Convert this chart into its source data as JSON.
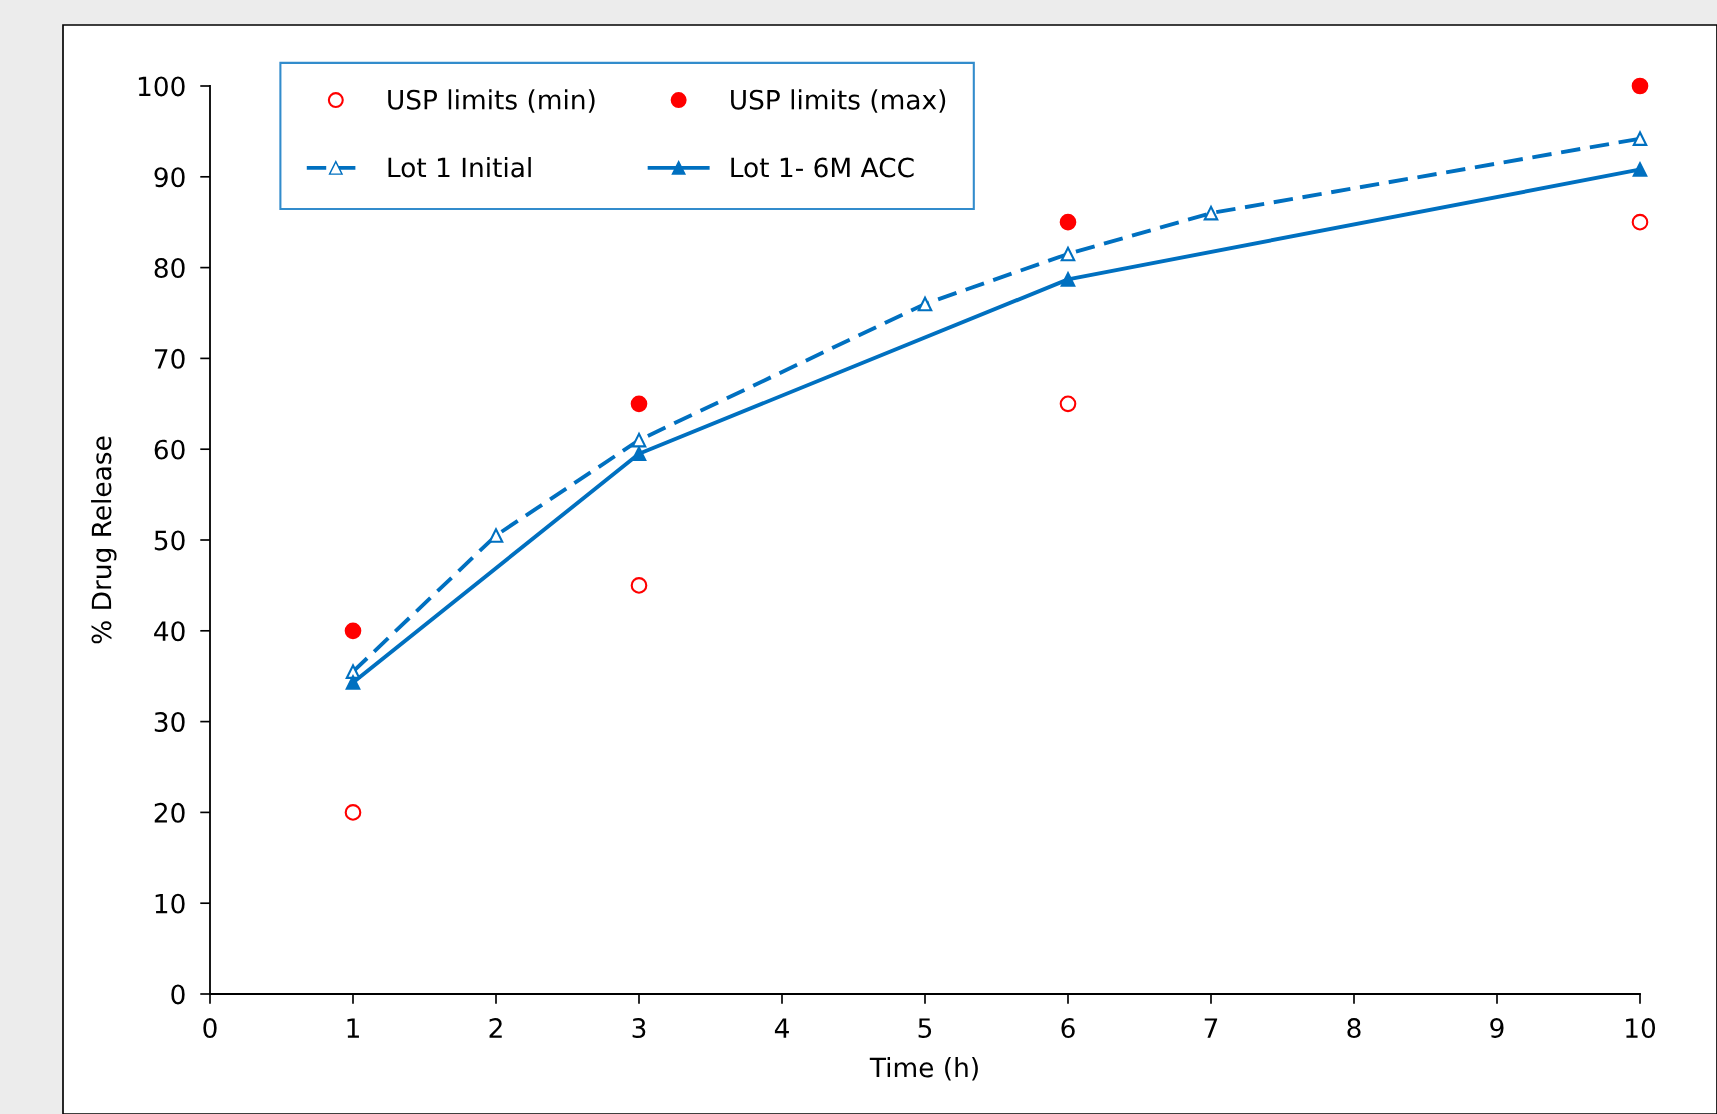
{
  "chart_data": {
    "type": "line",
    "xlabel": "Time (h)",
    "ylabel": "% Drug Release",
    "xlim": [
      0,
      10
    ],
    "xticks": [
      0,
      1,
      2,
      3,
      4,
      5,
      6,
      7,
      8,
      9,
      10
    ],
    "ylim": [
      0,
      100
    ],
    "yticks": [
      0,
      10,
      20,
      30,
      40,
      50,
      60,
      70,
      80,
      90,
      100
    ],
    "grid": false,
    "legend": "top left",
    "series": [
      {
        "name": "USP limits (min)",
        "type": "scatter",
        "marker": "circle",
        "color": "#ff0000",
        "x": [
          1,
          3,
          6,
          10
        ],
        "values": [
          20,
          45,
          65,
          85
        ]
      },
      {
        "name": "USP limits (max)",
        "type": "scatter",
        "marker": "circle",
        "color": "#ff0000",
        "x": [
          1,
          3,
          6,
          10
        ],
        "values": [
          40,
          65,
          85,
          100
        ]
      },
      {
        "name": "Lot 1 Initial",
        "marker": "triangle",
        "line_style": "dashed",
        "color": "#0070c0",
        "x": [
          1,
          2,
          3,
          5,
          6,
          7,
          10
        ],
        "values": [
          35.5,
          50.5,
          61,
          76,
          81.5,
          86,
          94.2
        ]
      },
      {
        "name": "Lot 1- 6M ACC",
        "marker": "triangle",
        "line_style": "solid",
        "color": "#0070c0",
        "x": [
          1,
          3,
          6,
          10
        ],
        "values": [
          34.3,
          59.5,
          78.7,
          90.8
        ]
      }
    ]
  }
}
